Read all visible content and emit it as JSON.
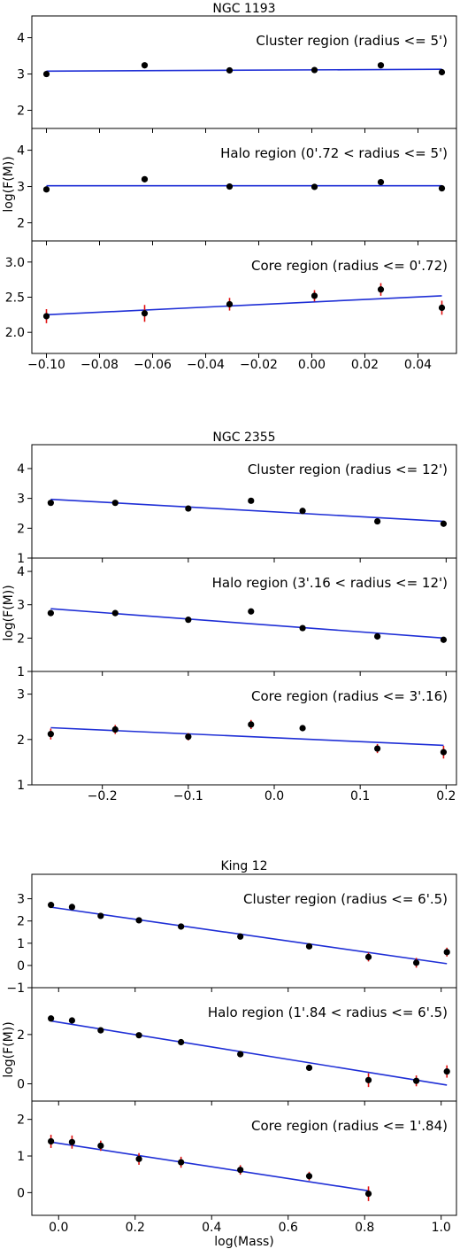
{
  "chart_data": [
    {
      "type": "scatter",
      "title": "NGC 1193",
      "xlabel": "",
      "ylabel": "log(F(M))",
      "x_ticks": [
        "−0.10",
        "−0.08",
        "−0.06",
        "−0.04",
        "−0.02",
        "0.00",
        "0.02",
        "0.04"
      ],
      "xlim": [
        -0.1055,
        0.0545
      ],
      "panels": [
        {
          "annotation": "Cluster region (radius <= 5')",
          "ylim": [
            1.5,
            4.6
          ],
          "y_ticks": [
            "2",
            "3",
            "4"
          ],
          "points": [
            [
              -0.1,
              3.0,
              0.05
            ],
            [
              -0.063,
              3.24,
              0.05
            ],
            [
              -0.031,
              3.1,
              0.05
            ],
            [
              0.001,
              3.11,
              0.05
            ],
            [
              0.026,
              3.24,
              0.05
            ],
            [
              0.049,
              3.05,
              0.05
            ]
          ],
          "fit": [
            [
              -0.1,
              3.08
            ],
            [
              0.049,
              3.13
            ]
          ]
        },
        {
          "annotation": "Halo region (0'.72 < radius <= 5')",
          "ylim": [
            1.5,
            4.6
          ],
          "y_ticks": [
            "2",
            "3",
            "4"
          ],
          "points": [
            [
              -0.1,
              2.92,
              0.05
            ],
            [
              -0.063,
              3.2,
              0.05
            ],
            [
              -0.031,
              3.0,
              0.05
            ],
            [
              0.001,
              2.99,
              0.05
            ],
            [
              0.026,
              3.12,
              0.05
            ],
            [
              0.049,
              2.95,
              0.05
            ]
          ],
          "fit": [
            [
              -0.1,
              3.02
            ],
            [
              0.049,
              3.02
            ]
          ]
        },
        {
          "annotation": "Core region (radius <= 0'.72)",
          "ylim": [
            1.7,
            3.3
          ],
          "y_ticks": [
            "2.0",
            "2.5",
            "3.0"
          ],
          "points": [
            [
              -0.1,
              2.23,
              0.1
            ],
            [
              -0.063,
              2.27,
              0.12
            ],
            [
              -0.031,
              2.4,
              0.09
            ],
            [
              0.001,
              2.52,
              0.08
            ],
            [
              0.026,
              2.61,
              0.09
            ],
            [
              0.049,
              2.35,
              0.1
            ]
          ],
          "fit": [
            [
              -0.1,
              2.25
            ],
            [
              0.049,
              2.52
            ]
          ]
        }
      ]
    },
    {
      "type": "scatter",
      "title": "NGC 2355",
      "xlabel": "",
      "ylabel": "log(F(M))",
      "x_ticks": [
        "−0.2",
        "−0.1",
        "0.0",
        "0.1",
        "0.2"
      ],
      "xlim": [
        -0.282,
        0.212
      ],
      "panels": [
        {
          "annotation": "Cluster region (radius <= 12')",
          "ylim": [
            1.0,
            4.8
          ],
          "y_ticks": [
            "1",
            "2",
            "3",
            "4"
          ],
          "points": [
            [
              -0.26,
              2.85,
              0.05
            ],
            [
              -0.185,
              2.85,
              0.05
            ],
            [
              -0.1,
              2.66,
              0.05
            ],
            [
              -0.027,
              2.92,
              0.05
            ],
            [
              0.033,
              2.58,
              0.05
            ],
            [
              0.12,
              2.23,
              0.05
            ],
            [
              0.197,
              2.15,
              0.05
            ]
          ],
          "fit": [
            [
              -0.26,
              2.97
            ],
            [
              0.197,
              2.23
            ]
          ]
        },
        {
          "annotation": "Halo region (3'.16 < radius <= 12')",
          "ylim": [
            1.0,
            4.4
          ],
          "y_ticks": [
            "1",
            "2",
            "3",
            "4"
          ],
          "points": [
            [
              -0.26,
              2.75,
              0.05
            ],
            [
              -0.185,
              2.75,
              0.05
            ],
            [
              -0.1,
              2.55,
              0.05
            ],
            [
              -0.027,
              2.8,
              0.05
            ],
            [
              0.033,
              2.3,
              0.05
            ],
            [
              0.12,
              2.05,
              0.05
            ],
            [
              0.197,
              1.95,
              0.05
            ]
          ],
          "fit": [
            [
              -0.26,
              2.88
            ],
            [
              0.197,
              2.0
            ]
          ]
        },
        {
          "annotation": "Core region (radius <= 3'.16)",
          "ylim": [
            1.0,
            3.5
          ],
          "y_ticks": [
            "1",
            "2",
            "3"
          ],
          "points": [
            [
              -0.26,
              2.12,
              0.12
            ],
            [
              -0.185,
              2.22,
              0.1
            ],
            [
              -0.1,
              2.06,
              0.08
            ],
            [
              -0.027,
              2.33,
              0.1
            ],
            [
              0.033,
              2.25,
              0.06
            ],
            [
              0.12,
              1.8,
              0.1
            ],
            [
              0.197,
              1.72,
              0.14
            ]
          ],
          "fit": [
            [
              -0.26,
              2.26
            ],
            [
              0.197,
              1.87
            ]
          ]
        }
      ]
    },
    {
      "type": "scatter",
      "title": "King 12",
      "xlabel": "log(Mass)",
      "ylabel": "log(F(M))",
      "x_ticks": [
        "0.0",
        "0.2",
        "0.4",
        "0.6",
        "0.8",
        "1.0"
      ],
      "xlim": [
        -0.07,
        1.04
      ],
      "panels": [
        {
          "annotation": "Cluster region (radius <= 6'.5)",
          "ylim": [
            -1.0,
            4.1
          ],
          "y_ticks": [
            "−1",
            "0",
            "1",
            "2",
            "3"
          ],
          "points": [
            [
              -0.02,
              2.72,
              0.05
            ],
            [
              0.035,
              2.63,
              0.05
            ],
            [
              0.11,
              2.23,
              0.05
            ],
            [
              0.21,
              2.03,
              0.05
            ],
            [
              0.32,
              1.75,
              0.05
            ],
            [
              0.475,
              1.3,
              0.05
            ],
            [
              0.655,
              0.86,
              0.1
            ],
            [
              0.81,
              0.38,
              0.2
            ],
            [
              0.935,
              0.12,
              0.22
            ],
            [
              1.015,
              0.6,
              0.2
            ]
          ],
          "fit": [
            [
              -0.02,
              2.62
            ],
            [
              1.015,
              0.08
            ]
          ]
        },
        {
          "annotation": "Halo region (1'.84 < radius <= 6'.5)",
          "ylim": [
            -0.7,
            3.9
          ],
          "y_ticks": [
            "0",
            "2"
          ],
          "points": [
            [
              -0.02,
              2.65,
              0.05
            ],
            [
              0.035,
              2.57,
              0.05
            ],
            [
              0.11,
              2.17,
              0.05
            ],
            [
              0.21,
              1.97,
              0.05
            ],
            [
              0.32,
              1.69,
              0.05
            ],
            [
              0.475,
              1.2,
              0.1
            ],
            [
              0.655,
              0.65,
              0.12
            ],
            [
              0.81,
              0.15,
              0.28
            ],
            [
              0.935,
              0.12,
              0.22
            ],
            [
              1.015,
              0.5,
              0.25
            ]
          ],
          "fit": [
            [
              -0.02,
              2.55
            ],
            [
              1.015,
              -0.05
            ]
          ]
        },
        {
          "annotation": "Core region (radius <= 1'.84)",
          "ylim": [
            -0.62,
            2.5
          ],
          "y_ticks": [
            "0",
            "1",
            "2"
          ],
          "points": [
            [
              -0.02,
              1.4,
              0.18
            ],
            [
              0.035,
              1.38,
              0.18
            ],
            [
              0.11,
              1.28,
              0.14
            ],
            [
              0.21,
              0.92,
              0.16
            ],
            [
              0.32,
              0.83,
              0.15
            ],
            [
              0.475,
              0.62,
              0.13
            ],
            [
              0.655,
              0.45,
              0.12
            ],
            [
              0.81,
              -0.03,
              0.2
            ]
          ],
          "fit": [
            [
              -0.02,
              1.38
            ],
            [
              0.81,
              0.05
            ]
          ]
        }
      ]
    }
  ]
}
